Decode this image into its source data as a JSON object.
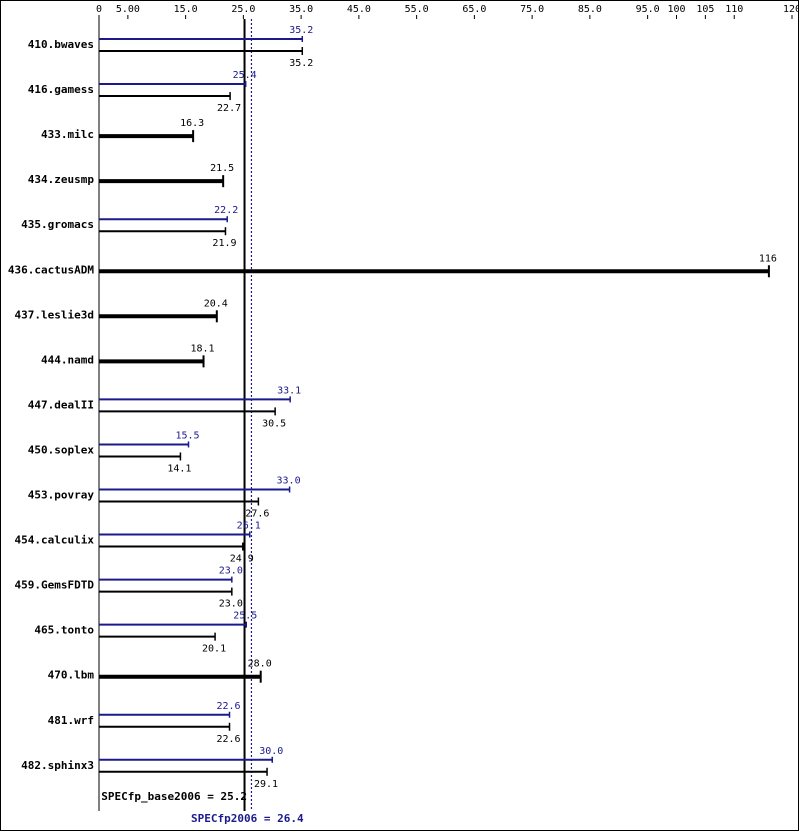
{
  "chart_data": {
    "type": "bar",
    "title": "",
    "xlabel": "",
    "ylabel": "",
    "xlim": [
      0,
      120
    ],
    "ticks": [
      "0",
      "5.00",
      "15.0",
      "25.0",
      "35.0",
      "45.0",
      "55.0",
      "65.0",
      "75.0",
      "85.0",
      "95.0",
      "100",
      "105",
      "110",
      "120"
    ],
    "tick_values": [
      0,
      5,
      15,
      25,
      35,
      45,
      55,
      65,
      75,
      85,
      95,
      100,
      105,
      110,
      120
    ],
    "categories": [
      "410.bwaves",
      "416.gamess",
      "433.milc",
      "434.zeusmp",
      "435.gromacs",
      "436.cactusADM",
      "437.leslie3d",
      "444.namd",
      "447.dealII",
      "450.soplex",
      "453.povray",
      "454.calculix",
      "459.GemsFDTD",
      "465.tonto",
      "470.lbm",
      "481.wrf",
      "482.sphinx3"
    ],
    "series": [
      {
        "name": "SPECfp_base2006",
        "color": "#000000",
        "values": [
          35.2,
          22.7,
          16.3,
          21.5,
          21.9,
          116,
          20.4,
          18.1,
          30.5,
          14.1,
          27.6,
          24.9,
          23.0,
          20.1,
          28.0,
          22.6,
          29.1
        ],
        "labels": [
          "35.2",
          "22.7",
          "16.3",
          "21.5",
          "21.9",
          "116",
          "20.4",
          "18.1",
          "30.5",
          "14.1",
          "27.6",
          "24.9",
          "23.0",
          "20.1",
          "28.0",
          "22.6",
          "29.1"
        ]
      },
      {
        "name": "SPECfp2006",
        "color": "#1a1a8c",
        "values": [
          35.2,
          25.4,
          null,
          null,
          22.2,
          null,
          null,
          null,
          33.1,
          15.5,
          33.0,
          26.1,
          23.0,
          25.5,
          null,
          22.6,
          30.0
        ],
        "labels": [
          "35.2",
          "25.4",
          null,
          null,
          "22.2",
          null,
          null,
          null,
          "33.1",
          "15.5",
          "33.0",
          "26.1",
          "23.0",
          "25.5",
          null,
          "22.6",
          "30.0"
        ]
      }
    ],
    "reference_lines": [
      {
        "label": "SPECfp_base2006 = 25.2",
        "value": 25.2,
        "style": "solid",
        "color": "#000000"
      },
      {
        "label": "SPECfp2006 = 26.4",
        "value": 26.4,
        "style": "dotted",
        "color": "#1a1a8c"
      }
    ]
  }
}
